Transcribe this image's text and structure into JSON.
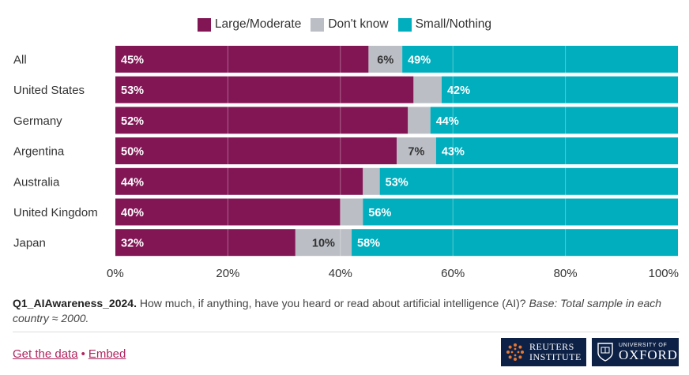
{
  "chart_data": {
    "type": "bar",
    "stacked": true,
    "orientation": "horizontal",
    "categories": [
      "All",
      "United States",
      "Germany",
      "Argentina",
      "Australia",
      "United Kingdom",
      "Japan"
    ],
    "series": [
      {
        "name": "Large/Moderate",
        "color": "#821655",
        "values": [
          45,
          53,
          52,
          50,
          44,
          40,
          32
        ],
        "labels": [
          "45%",
          "53%",
          "52%",
          "50%",
          "44%",
          "40%",
          "32%"
        ]
      },
      {
        "name": "Don't know",
        "color": "#bbbec5",
        "values": [
          6,
          5,
          4,
          7,
          3,
          4,
          10
        ],
        "labels": [
          "6%",
          "",
          "",
          "7%",
          "",
          "",
          "10%"
        ]
      },
      {
        "name": "Small/Nothing",
        "color": "#00aebe",
        "values": [
          49,
          42,
          44,
          43,
          53,
          56,
          58
        ],
        "labels": [
          "49%",
          "42%",
          "44%",
          "43%",
          "53%",
          "56%",
          "58%"
        ]
      }
    ],
    "xlim": [
      0,
      100
    ],
    "xticks": [
      0,
      20,
      40,
      60,
      80,
      100
    ],
    "xtick_labels": [
      "0%",
      "20%",
      "40%",
      "60%",
      "80%",
      "100%"
    ],
    "grid": true,
    "legend_position": "top-center"
  },
  "footnote": {
    "code": "Q1_AIAwareness_2024.",
    "question": " How much, if anything, have you heard or read about artificial intelligence (AI)? ",
    "base": "Base: Total sample in each country ≈ 2000."
  },
  "links": {
    "get_data": "Get the data",
    "separator": "•",
    "embed": "Embed"
  },
  "logos": {
    "reuters_line1": "REUTERS",
    "reuters_line2": "INSTITUTE",
    "oxford_small": "UNIVERSITY OF",
    "oxford_big": "OXFORD"
  }
}
